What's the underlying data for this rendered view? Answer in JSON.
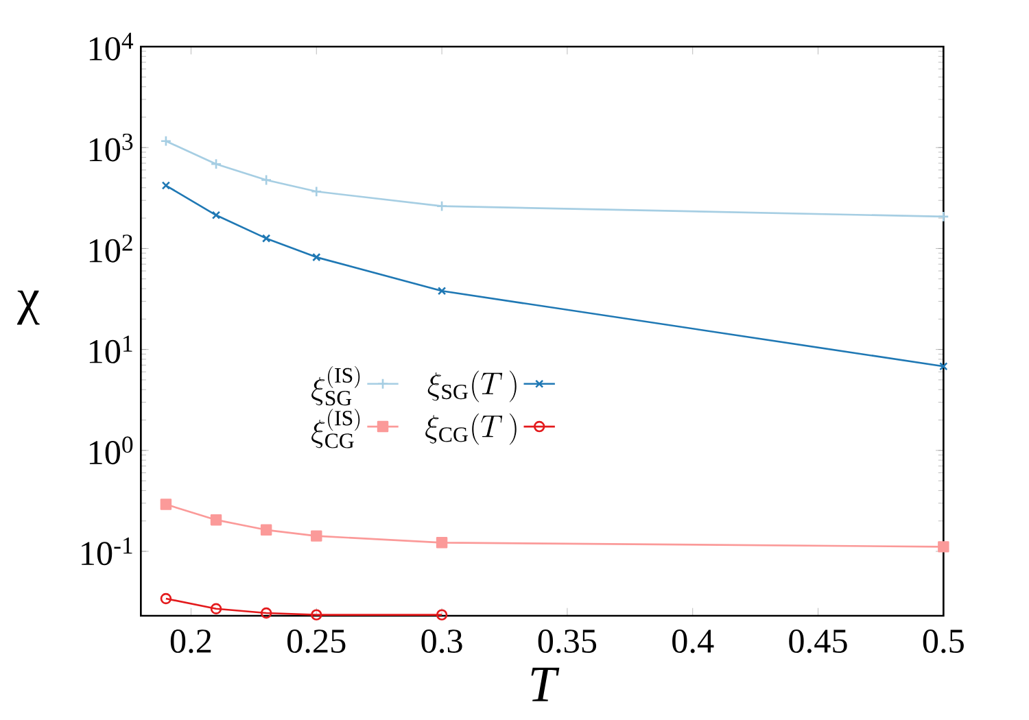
{
  "chart_data": {
    "type": "line",
    "xlabel": "T",
    "ylabel": "χ",
    "log": "y",
    "legend": "left",
    "grid": false,
    "x": [
      0.19,
      0.21,
      0.23,
      0.25,
      0.3,
      0.5
    ],
    "xlim": [
      0.18,
      0.5
    ],
    "xticks": [
      0.2,
      0.25,
      0.3,
      0.35,
      0.4,
      0.45,
      0.5
    ],
    "ylim": [
      0.023,
      10000
    ],
    "yticks": [
      {
        "value": 0.1,
        "label": "10$^{-1}$"
      },
      {
        "value": 1,
        "label": "10$^{0}$"
      },
      {
        "value": 10,
        "label": "10$^{1}$"
      },
      {
        "value": 100,
        "label": "10$^{2}$"
      },
      {
        "value": 1000,
        "label": "10$^{3}$"
      },
      {
        "value": 10000,
        "label": "10$^{4}$"
      }
    ],
    "series": [
      {
        "name": "\\xi_{\\mathrm{SG}}^{(\\mathrm{IS})}",
        "color": "#a6cee3",
        "marker": "plus",
        "values": [
          1160,
          687,
          477,
          367,
          263,
          207
        ]
      },
      {
        "name": "\\xi_{\\mathrm{SG}}(T\\,)",
        "color": "#1f78b4",
        "marker": "cross",
        "values": [
          421,
          214,
          126,
          82,
          38,
          6.8
        ]
      },
      {
        "name": "\\xi_{\\mathrm{CG}}^{(\\mathrm{IS})}",
        "color": "#fb9a99",
        "marker": "square",
        "values": [
          0.292,
          0.205,
          0.163,
          0.142,
          0.122,
          0.111
        ]
      },
      {
        "name": "\\xi_{\\mathrm{CG}}(T\\,)",
        "color": "#e31a1c",
        "marker": "circle",
        "values": [
          0.034,
          0.027,
          0.0245,
          0.0235,
          0.0235,
          null
        ]
      }
    ]
  }
}
